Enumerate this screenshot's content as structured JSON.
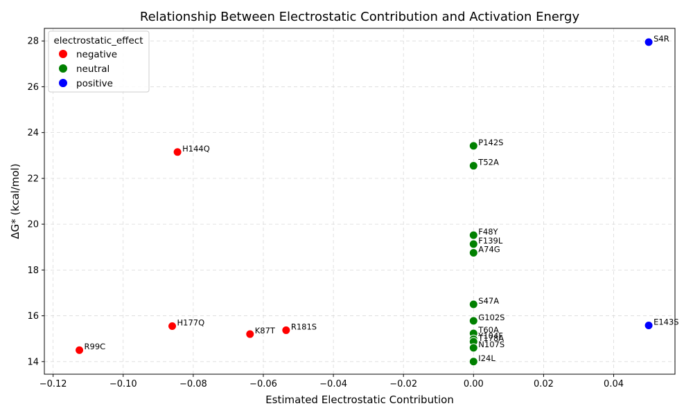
{
  "chart_data": {
    "type": "scatter",
    "title": "Relationship Between Electrostatic Contribution and Activation Energy",
    "xlabel": "Estimated Electrostatic Contribution",
    "ylabel": "ΔG* (kcal/mol)",
    "xlim": [
      -0.1225,
      0.0575
    ],
    "ylim": [
      13.45,
      28.55
    ],
    "xticks": [
      -0.12,
      -0.1,
      -0.08,
      -0.06,
      -0.04,
      -0.02,
      0.0,
      0.02,
      0.04
    ],
    "xtick_labels": [
      "−0.12",
      "−0.10",
      "−0.08",
      "−0.06",
      "−0.04",
      "−0.02",
      "0.00",
      "0.02",
      "0.04"
    ],
    "yticks": [
      14,
      16,
      18,
      20,
      22,
      24,
      26,
      28
    ],
    "ytick_labels": [
      "14",
      "16",
      "18",
      "20",
      "22",
      "24",
      "26",
      "28"
    ],
    "grid": true,
    "legend": {
      "title": "electrostatic_effect",
      "placement": "top-left",
      "entries": [
        {
          "name": "negative",
          "color": "#ff0000"
        },
        {
          "name": "neutral",
          "color": "#008000"
        },
        {
          "name": "positive",
          "color": "#0000ff"
        }
      ]
    },
    "points": [
      {
        "label": "S4R",
        "x": 0.05,
        "y": 27.95,
        "group": "positive"
      },
      {
        "label": "E143S",
        "x": 0.05,
        "y": 15.58,
        "group": "positive"
      },
      {
        "label": "H144Q",
        "x": -0.0845,
        "y": 23.15,
        "group": "negative"
      },
      {
        "label": "H177Q",
        "x": -0.086,
        "y": 15.55,
        "group": "negative"
      },
      {
        "label": "K87T",
        "x": -0.0638,
        "y": 15.2,
        "group": "negative"
      },
      {
        "label": "R181S",
        "x": -0.0535,
        "y": 15.37,
        "group": "negative"
      },
      {
        "label": "R99C",
        "x": -0.1125,
        "y": 14.5,
        "group": "negative"
      },
      {
        "label": "P142S",
        "x": 0.0,
        "y": 23.42,
        "group": "neutral"
      },
      {
        "label": "T52A",
        "x": 0.0,
        "y": 22.55,
        "group": "neutral"
      },
      {
        "label": "F48Y",
        "x": 0.0,
        "y": 19.52,
        "group": "neutral"
      },
      {
        "label": "F139L",
        "x": 0.0,
        "y": 19.13,
        "group": "neutral"
      },
      {
        "label": "A74G",
        "x": 0.0,
        "y": 18.75,
        "group": "neutral"
      },
      {
        "label": "S47A",
        "x": 0.0,
        "y": 16.5,
        "group": "neutral"
      },
      {
        "label": "G102S",
        "x": 0.0,
        "y": 15.78,
        "group": "neutral"
      },
      {
        "label": "T60A",
        "x": 0.0,
        "y": 15.23,
        "group": "neutral"
      },
      {
        "label": "Y104F",
        "x": 0.0,
        "y": 14.98,
        "group": "neutral"
      },
      {
        "label": "T178A",
        "x": 0.0,
        "y": 14.87,
        "group": "neutral"
      },
      {
        "label": "N107S",
        "x": 0.0,
        "y": 14.6,
        "group": "neutral"
      },
      {
        "label": "I24L",
        "x": 0.0,
        "y": 14.0,
        "group": "neutral"
      }
    ]
  }
}
